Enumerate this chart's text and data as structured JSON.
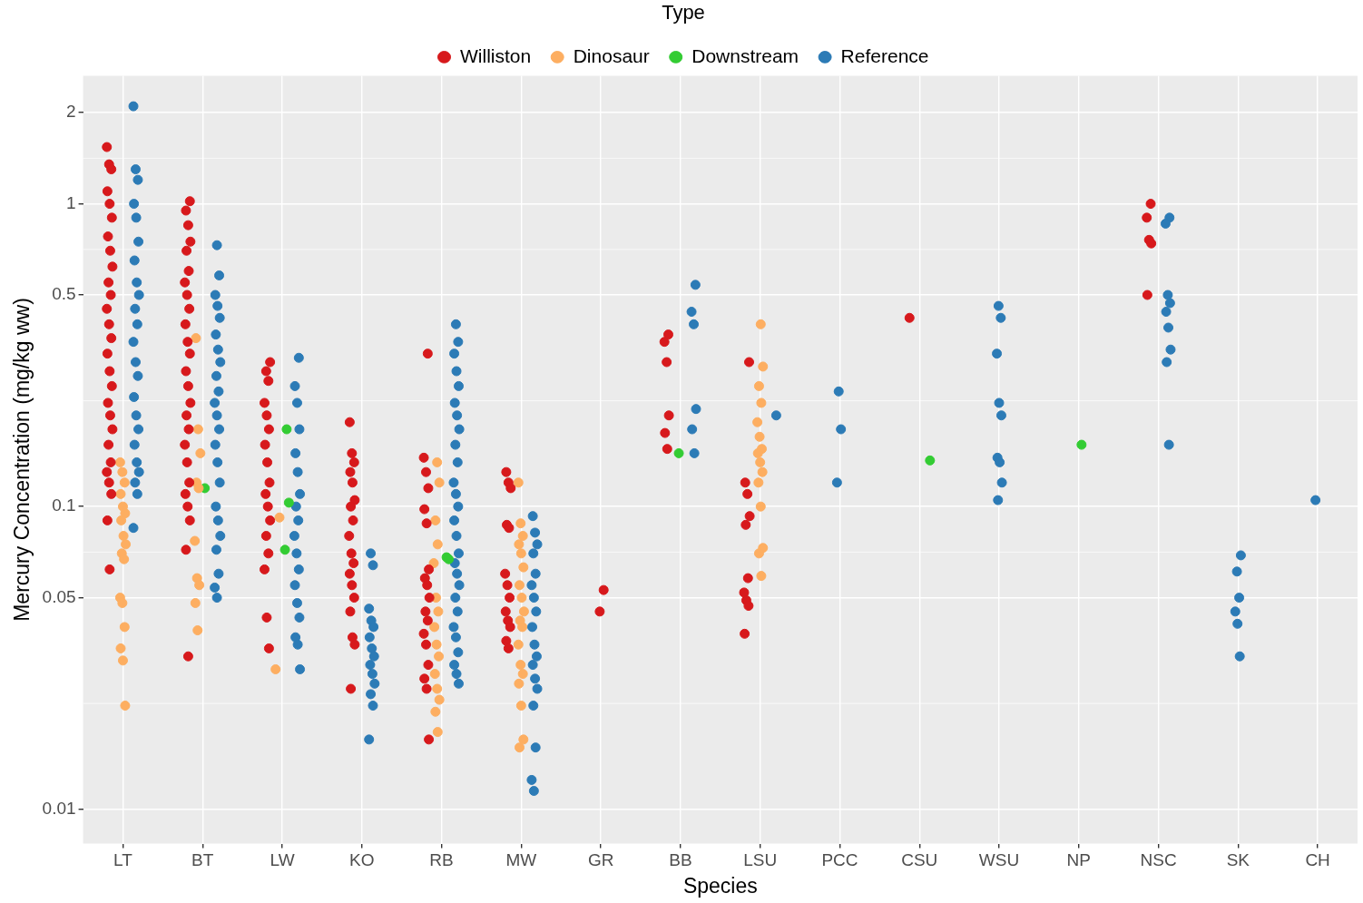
{
  "chart_data": {
    "type": "scatter",
    "xlabel": "Species",
    "ylabel": "Mercury Concentration (mg/kg ww)",
    "legend_title": "Type",
    "legend": "top",
    "grid": true,
    "marker": "circle",
    "log": "y",
    "categories": [
      "LT",
      "BT",
      "LW",
      "KO",
      "RB",
      "MW",
      "GR",
      "BB",
      "LSU",
      "PCC",
      "CSU",
      "WSU",
      "NP",
      "NSC",
      "SK",
      "CH"
    ],
    "ylim": [
      0.0077,
      2.65
    ],
    "yticks": [
      0.01,
      0.05,
      0.1,
      0.5,
      1,
      2
    ],
    "series": [
      {
        "name": "Williston",
        "color": "#d7191c",
        "x": [
          "LT",
          "LT",
          "LT",
          "LT",
          "LT",
          "LT",
          "LT",
          "LT",
          "LT",
          "LT",
          "LT",
          "LT",
          "LT",
          "LT",
          "LT",
          "LT",
          "LT",
          "LT",
          "LT",
          "LT",
          "LT",
          "LT",
          "LT",
          "LT",
          "LT",
          "LT",
          "LT",
          "BT",
          "BT",
          "BT",
          "BT",
          "BT",
          "BT",
          "BT",
          "BT",
          "BT",
          "BT",
          "BT",
          "BT",
          "BT",
          "BT",
          "BT",
          "BT",
          "BT",
          "BT",
          "BT",
          "BT",
          "BT",
          "BT",
          "BT",
          "BT",
          "BT",
          "LW",
          "LW",
          "LW",
          "LW",
          "LW",
          "LW",
          "LW",
          "LW",
          "LW",
          "LW",
          "LW",
          "LW",
          "LW",
          "LW",
          "LW",
          "LW",
          "LW",
          "KO",
          "KO",
          "KO",
          "KO",
          "KO",
          "KO",
          "KO",
          "KO",
          "KO",
          "KO",
          "KO",
          "KO",
          "KO",
          "KO",
          "KO",
          "KO",
          "KO",
          "KO",
          "RB",
          "RB",
          "RB",
          "RB",
          "RB",
          "RB",
          "RB",
          "RB",
          "RB",
          "RB",
          "RB",
          "RB",
          "RB",
          "RB",
          "RB",
          "RB",
          "RB",
          "RB",
          "MW",
          "MW",
          "MW",
          "MW",
          "MW",
          "MW",
          "MW",
          "MW",
          "MW",
          "MW",
          "MW",
          "MW",
          "MW",
          "GR",
          "GR",
          "BB",
          "BB",
          "BB",
          "BB",
          "BB",
          "BB",
          "LSU",
          "LSU",
          "LSU",
          "LSU",
          "LSU",
          "LSU",
          "LSU",
          "LSU",
          "LSU",
          "LSU",
          "CSU",
          "NSC",
          "NSC",
          "NSC",
          "NSC",
          "NSC"
        ],
        "values": [
          1.54,
          1.35,
          1.3,
          1.1,
          1.0,
          0.9,
          0.78,
          0.7,
          0.62,
          0.55,
          0.5,
          0.45,
          0.4,
          0.36,
          0.32,
          0.28,
          0.25,
          0.22,
          0.2,
          0.18,
          0.16,
          0.14,
          0.13,
          0.12,
          0.11,
          0.09,
          0.062,
          1.02,
          0.95,
          0.85,
          0.75,
          0.7,
          0.6,
          0.55,
          0.5,
          0.45,
          0.4,
          0.35,
          0.32,
          0.28,
          0.25,
          0.22,
          0.2,
          0.18,
          0.16,
          0.14,
          0.12,
          0.11,
          0.1,
          0.09,
          0.072,
          0.032,
          0.3,
          0.28,
          0.26,
          0.22,
          0.2,
          0.18,
          0.16,
          0.14,
          0.12,
          0.11,
          0.1,
          0.09,
          0.08,
          0.07,
          0.062,
          0.043,
          0.034,
          0.19,
          0.15,
          0.14,
          0.13,
          0.12,
          0.105,
          0.1,
          0.09,
          0.08,
          0.07,
          0.065,
          0.06,
          0.055,
          0.05,
          0.045,
          0.037,
          0.035,
          0.025,
          0.32,
          0.145,
          0.13,
          0.115,
          0.098,
          0.088,
          0.062,
          0.058,
          0.055,
          0.05,
          0.045,
          0.042,
          0.038,
          0.035,
          0.03,
          0.027,
          0.025,
          0.017,
          0.13,
          0.12,
          0.115,
          0.087,
          0.085,
          0.06,
          0.055,
          0.05,
          0.045,
          0.042,
          0.04,
          0.036,
          0.034,
          0.053,
          0.045,
          0.37,
          0.35,
          0.3,
          0.2,
          0.175,
          0.155,
          0.3,
          0.12,
          0.11,
          0.093,
          0.087,
          0.058,
          0.052,
          0.049,
          0.047,
          0.038,
          0.42,
          1.0,
          0.9,
          0.76,
          0.74,
          0.5
        ]
      },
      {
        "name": "Dinosaur",
        "color": "#fdae61",
        "x": [
          "LT",
          "LT",
          "LT",
          "LT",
          "LT",
          "LT",
          "LT",
          "LT",
          "LT",
          "LT",
          "LT",
          "LT",
          "LT",
          "LT",
          "LT",
          "LT",
          "LT",
          "BT",
          "BT",
          "BT",
          "BT",
          "BT",
          "BT",
          "BT",
          "BT",
          "BT",
          "BT",
          "LW",
          "LW",
          "RB",
          "RB",
          "RB",
          "RB",
          "RB",
          "RB",
          "RB",
          "RB",
          "RB",
          "RB",
          "RB",
          "RB",
          "RB",
          "RB",
          "RB",
          "MW",
          "MW",
          "MW",
          "MW",
          "MW",
          "MW",
          "MW",
          "MW",
          "MW",
          "MW",
          "MW",
          "MW",
          "MW",
          "MW",
          "MW",
          "MW",
          "MW",
          "MW",
          "LSU",
          "LSU",
          "LSU",
          "LSU",
          "LSU",
          "LSU",
          "LSU",
          "LSU",
          "LSU",
          "LSU",
          "LSU",
          "LSU",
          "LSU",
          "LSU",
          "LSU"
        ],
        "values": [
          0.14,
          0.13,
          0.12,
          0.11,
          0.1,
          0.095,
          0.09,
          0.08,
          0.075,
          0.07,
          0.067,
          0.05,
          0.048,
          0.04,
          0.034,
          0.031,
          0.022,
          0.36,
          0.18,
          0.15,
          0.12,
          0.115,
          0.077,
          0.058,
          0.055,
          0.048,
          0.039,
          0.092,
          0.029,
          0.14,
          0.12,
          0.09,
          0.075,
          0.065,
          0.05,
          0.045,
          0.04,
          0.035,
          0.032,
          0.028,
          0.025,
          0.023,
          0.021,
          0.018,
          0.12,
          0.088,
          0.08,
          0.075,
          0.07,
          0.063,
          0.055,
          0.05,
          0.045,
          0.042,
          0.04,
          0.035,
          0.03,
          0.028,
          0.026,
          0.022,
          0.017,
          0.016,
          0.4,
          0.29,
          0.25,
          0.22,
          0.19,
          0.17,
          0.155,
          0.15,
          0.14,
          0.13,
          0.12,
          0.1,
          0.073,
          0.07,
          0.059
        ]
      },
      {
        "name": "Downstream",
        "color": "#33cc33",
        "x": [
          "BT",
          "LW",
          "LW",
          "LW",
          "RB",
          "RB",
          "BB",
          "CSU",
          "NP"
        ],
        "values": [
          0.115,
          0.18,
          0.103,
          0.072,
          0.068,
          0.067,
          0.15,
          0.142,
          0.16
        ]
      },
      {
        "name": "Reference",
        "color": "#2c7bb6",
        "x": [
          "LT",
          "LT",
          "LT",
          "LT",
          "LT",
          "LT",
          "LT",
          "LT",
          "LT",
          "LT",
          "LT",
          "LT",
          "LT",
          "LT",
          "LT",
          "LT",
          "LT",
          "LT",
          "LT",
          "LT",
          "LT",
          "LT",
          "LT",
          "BT",
          "BT",
          "BT",
          "BT",
          "BT",
          "BT",
          "BT",
          "BT",
          "BT",
          "BT",
          "BT",
          "BT",
          "BT",
          "BT",
          "BT",
          "BT",
          "BT",
          "BT",
          "BT",
          "BT",
          "BT",
          "BT",
          "BT",
          "LW",
          "LW",
          "LW",
          "LW",
          "LW",
          "LW",
          "LW",
          "LW",
          "LW",
          "LW",
          "LW",
          "LW",
          "LW",
          "LW",
          "LW",
          "LW",
          "LW",
          "LW",
          "KO",
          "KO",
          "KO",
          "KO",
          "KO",
          "KO",
          "KO",
          "KO",
          "KO",
          "KO",
          "KO",
          "KO",
          "KO",
          "KO",
          "RB",
          "RB",
          "RB",
          "RB",
          "RB",
          "RB",
          "RB",
          "RB",
          "RB",
          "RB",
          "RB",
          "RB",
          "RB",
          "RB",
          "RB",
          "RB",
          "RB",
          "RB",
          "RB",
          "RB",
          "RB",
          "RB",
          "RB",
          "RB",
          "RB",
          "RB",
          "RB",
          "MW",
          "MW",
          "MW",
          "MW",
          "MW",
          "MW",
          "MW",
          "MW",
          "MW",
          "MW",
          "MW",
          "MW",
          "MW",
          "MW",
          "MW",
          "MW",
          "MW",
          "MW",
          "BB",
          "BB",
          "BB",
          "BB",
          "BB",
          "BB",
          "LSU",
          "PCC",
          "PCC",
          "PCC",
          "WSU",
          "WSU",
          "WSU",
          "WSU",
          "WSU",
          "WSU",
          "WSU",
          "WSU",
          "WSU",
          "NSC",
          "NSC",
          "NSC",
          "NSC",
          "NSC",
          "NSC",
          "NSC",
          "NSC",
          "NSC",
          "SK",
          "SK",
          "SK",
          "SK",
          "SK",
          "SK",
          "CH"
        ],
        "values": [
          2.1,
          1.3,
          1.2,
          1.0,
          0.9,
          0.75,
          0.65,
          0.55,
          0.5,
          0.45,
          0.4,
          0.35,
          0.3,
          0.27,
          0.23,
          0.2,
          0.18,
          0.16,
          0.14,
          0.13,
          0.12,
          0.11,
          0.085,
          0.73,
          0.58,
          0.5,
          0.46,
          0.42,
          0.37,
          0.33,
          0.3,
          0.27,
          0.24,
          0.22,
          0.2,
          0.18,
          0.16,
          0.14,
          0.12,
          0.1,
          0.09,
          0.08,
          0.072,
          0.06,
          0.054,
          0.05,
          0.31,
          0.25,
          0.22,
          0.18,
          0.15,
          0.13,
          0.11,
          0.1,
          0.09,
          0.08,
          0.07,
          0.062,
          0.055,
          0.048,
          0.043,
          0.037,
          0.035,
          0.029,
          0.07,
          0.064,
          0.046,
          0.042,
          0.04,
          0.037,
          0.034,
          0.032,
          0.03,
          0.028,
          0.026,
          0.024,
          0.022,
          0.017,
          0.4,
          0.35,
          0.32,
          0.28,
          0.25,
          0.22,
          0.2,
          0.18,
          0.16,
          0.14,
          0.12,
          0.11,
          0.1,
          0.09,
          0.08,
          0.07,
          0.065,
          0.06,
          0.055,
          0.05,
          0.045,
          0.04,
          0.037,
          0.033,
          0.03,
          0.028,
          0.026,
          0.093,
          0.082,
          0.075,
          0.07,
          0.06,
          0.055,
          0.05,
          0.045,
          0.04,
          0.035,
          0.032,
          0.03,
          0.027,
          0.025,
          0.022,
          0.016,
          0.0125,
          0.0115,
          0.54,
          0.44,
          0.4,
          0.21,
          0.18,
          0.15,
          0.2,
          0.24,
          0.18,
          0.12,
          0.46,
          0.42,
          0.32,
          0.22,
          0.2,
          0.145,
          0.14,
          0.12,
          0.105,
          0.9,
          0.86,
          0.5,
          0.47,
          0.44,
          0.39,
          0.33,
          0.3,
          0.16,
          0.069,
          0.061,
          0.05,
          0.045,
          0.041,
          0.032,
          0.105
        ]
      }
    ]
  }
}
